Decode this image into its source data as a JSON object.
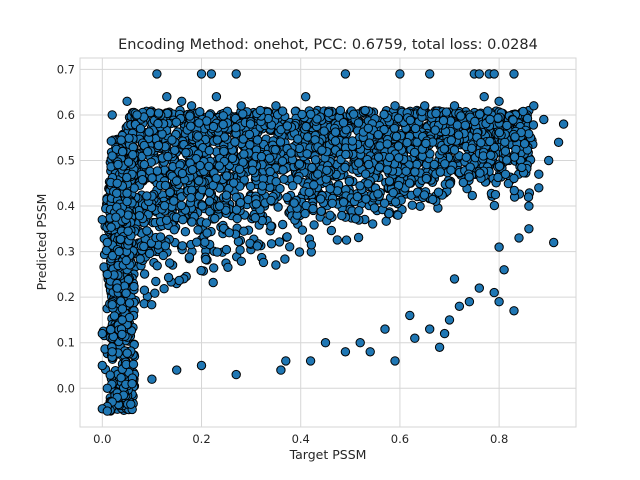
{
  "chart_data": {
    "type": "scatter",
    "title": "Encoding Method: onehot, PCC: 0.6759, total loss: 0.0284",
    "xlabel": "Target PSSM",
    "ylabel": "Predicted PSSM",
    "xlim": [
      -0.045,
      0.955
    ],
    "ylim": [
      -0.085,
      0.725
    ],
    "xticks": [
      "0.0",
      "0.2",
      "0.4",
      "0.6",
      "0.8"
    ],
    "yticks": [
      "0.0",
      "0.1",
      "0.2",
      "0.3",
      "0.4",
      "0.5",
      "0.6",
      "0.7"
    ],
    "grid": true,
    "point_color": "#1f77b4",
    "edge_color": "#000000",
    "series": [
      {
        "points": [
          [
            0.11,
            0.69
          ],
          [
            0.2,
            0.69
          ],
          [
            0.22,
            0.69
          ],
          [
            0.27,
            0.69
          ],
          [
            0.49,
            0.69
          ],
          [
            0.6,
            0.69
          ],
          [
            0.66,
            0.69
          ],
          [
            0.75,
            0.69
          ],
          [
            0.76,
            0.69
          ],
          [
            0.78,
            0.69
          ],
          [
            0.79,
            0.69
          ],
          [
            0.83,
            0.69
          ],
          [
            0.93,
            0.58
          ],
          [
            0.92,
            0.54
          ],
          [
            0.91,
            0.32
          ],
          [
            0.88,
            0.44
          ],
          [
            0.86,
            0.4
          ],
          [
            0.84,
            0.33
          ],
          [
            0.83,
            0.17
          ],
          [
            0.81,
            0.26
          ],
          [
            0.8,
            0.19
          ],
          [
            0.79,
            0.21
          ],
          [
            0.76,
            0.22
          ],
          [
            0.74,
            0.19
          ],
          [
            0.72,
            0.18
          ],
          [
            0.71,
            0.24
          ],
          [
            0.7,
            0.15
          ],
          [
            0.69,
            0.12
          ],
          [
            0.68,
            0.09
          ],
          [
            0.66,
            0.13
          ],
          [
            0.63,
            0.11
          ],
          [
            0.62,
            0.16
          ],
          [
            0.59,
            0.06
          ],
          [
            0.57,
            0.13
          ],
          [
            0.54,
            0.08
          ],
          [
            0.52,
            0.1
          ],
          [
            0.49,
            0.08
          ],
          [
            0.45,
            0.1
          ],
          [
            0.42,
            0.06
          ],
          [
            0.37,
            0.06
          ],
          [
            0.36,
            0.04
          ],
          [
            0.27,
            0.03
          ],
          [
            0.2,
            0.05
          ],
          [
            0.15,
            0.04
          ],
          [
            0.1,
            0.02
          ],
          [
            0.06,
            0.01
          ],
          [
            0.03,
            -0.02
          ],
          [
            0.02,
            -0.03
          ],
          [
            0.01,
            -0.04
          ],
          [
            0.0,
            -0.045
          ],
          [
            0.01,
            -0.05
          ],
          [
            0.02,
            0.6
          ],
          [
            0.05,
            0.63
          ],
          [
            0.07,
            0.6
          ],
          [
            0.13,
            0.64
          ],
          [
            0.16,
            0.63
          ],
          [
            0.18,
            0.62
          ],
          [
            0.23,
            0.64
          ],
          [
            0.28,
            0.62
          ],
          [
            0.35,
            0.62
          ],
          [
            0.41,
            0.64
          ],
          [
            0.48,
            0.61
          ],
          [
            0.53,
            0.61
          ],
          [
            0.59,
            0.62
          ],
          [
            0.65,
            0.62
          ],
          [
            0.71,
            0.62
          ],
          [
            0.77,
            0.64
          ],
          [
            0.8,
            0.63
          ],
          [
            0.87,
            0.62
          ],
          [
            0.89,
            0.59
          ],
          [
            0.9,
            0.5
          ],
          [
            0.88,
            0.47
          ],
          [
            0.86,
            0.35
          ],
          [
            0.8,
            0.31
          ],
          [
            0.0,
            0.37
          ],
          [
            0.01,
            0.32
          ],
          [
            0.02,
            0.51
          ],
          [
            0.0,
            0.12
          ],
          [
            0.01,
            0.25
          ],
          [
            0.03,
            0.22
          ],
          [
            0.04,
            0.15
          ],
          [
            0.02,
            0.08
          ],
          [
            0.0,
            0.05
          ],
          [
            0.01,
            0.0
          ],
          [
            0.05,
            0.41
          ],
          [
            0.03,
            0.45
          ]
        ]
      }
    ]
  }
}
